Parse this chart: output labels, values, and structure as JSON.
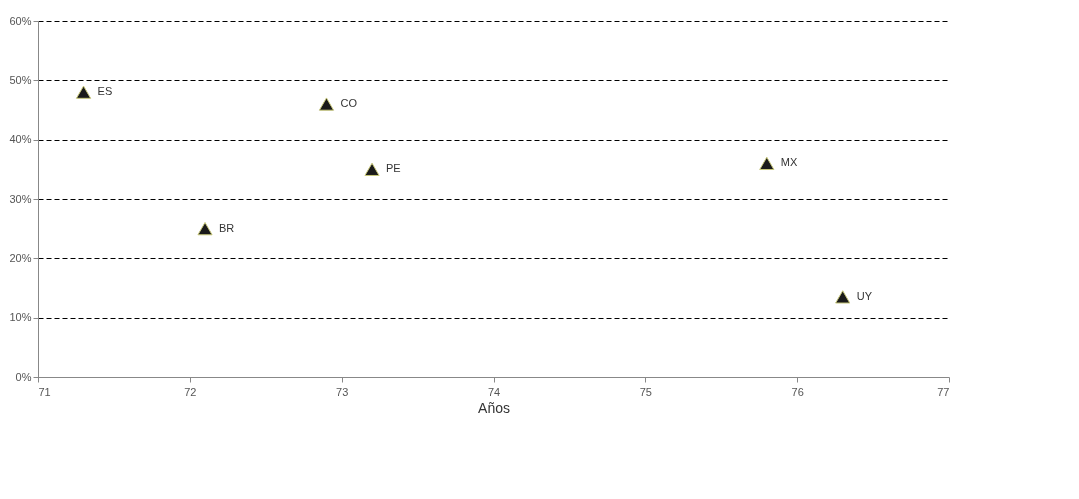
{
  "chart_data": {
    "type": "scatter",
    "xlabel": "Años",
    "x": [
      71.3,
      72.9,
      73.2,
      75.8,
      72.1,
      76.3
    ],
    "series": [
      {
        "color": "#1a1a1a",
        "values": [
          48,
          46,
          35,
          36,
          25,
          13.5
        ]
      }
    ],
    "marker": "triangle",
    "grid": "y",
    "xlim": [
      71,
      77
    ],
    "xticks": [
      71,
      72,
      73,
      74,
      75,
      76,
      77
    ],
    "ylim": [
      0,
      60
    ],
    "yticks": [
      {
        "value": 0,
        "label": "0%"
      },
      {
        "value": 10,
        "label": "10%"
      },
      {
        "value": 20,
        "label": "20%"
      },
      {
        "value": 30,
        "label": "30%"
      },
      {
        "value": 40,
        "label": "40%"
      },
      {
        "value": 50,
        "label": "50%"
      },
      {
        "value": 60,
        "label": "60%"
      }
    ],
    "annotations": [
      {
        "text": "ES",
        "x": 71.3,
        "y": 48
      },
      {
        "text": "CO",
        "x": 72.9,
        "y": 46
      },
      {
        "text": "PE",
        "x": 73.2,
        "y": 35
      },
      {
        "text": "MX",
        "x": 75.8,
        "y": 36
      },
      {
        "text": "BR",
        "x": 72.1,
        "y": 25
      },
      {
        "text": "UY",
        "x": 76.3,
        "y": 13.5
      }
    ]
  }
}
